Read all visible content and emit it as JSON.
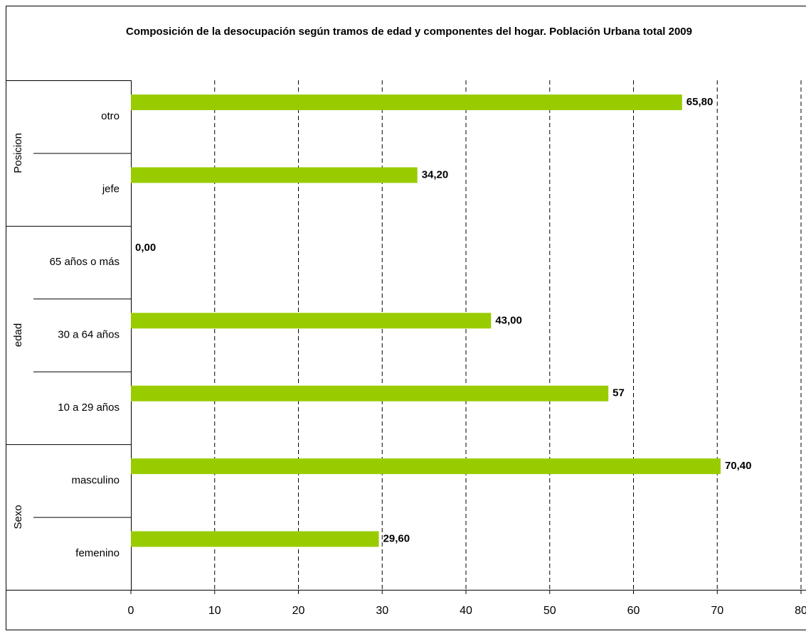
{
  "chart_data": {
    "type": "bar",
    "orientation": "horizontal",
    "title": "Composición de la desocupación según tramos de edad y componentes del hogar. Población Urbana total 2009",
    "categories": [
      "otro",
      "jefe",
      "65 años o más",
      "30 a 64 años",
      "10 a 29 años",
      "masculino",
      "femenino"
    ],
    "category_groups": [
      {
        "name": "Posicion",
        "size": 2
      },
      {
        "name": "edad",
        "size": 3
      },
      {
        "name": "Sexo",
        "size": 2
      }
    ],
    "values": [
      65.8,
      34.2,
      0,
      43,
      57,
      70.4,
      29.6
    ],
    "value_labels": [
      "65,80",
      "34,20",
      "0,00",
      "43,00",
      "57",
      "70,40",
      "29,60"
    ],
    "color": "#99cc00",
    "xlim": [
      0,
      80
    ],
    "xticks": [
      0,
      10,
      20,
      30,
      40,
      50,
      60,
      70,
      80
    ],
    "grid": true
  }
}
